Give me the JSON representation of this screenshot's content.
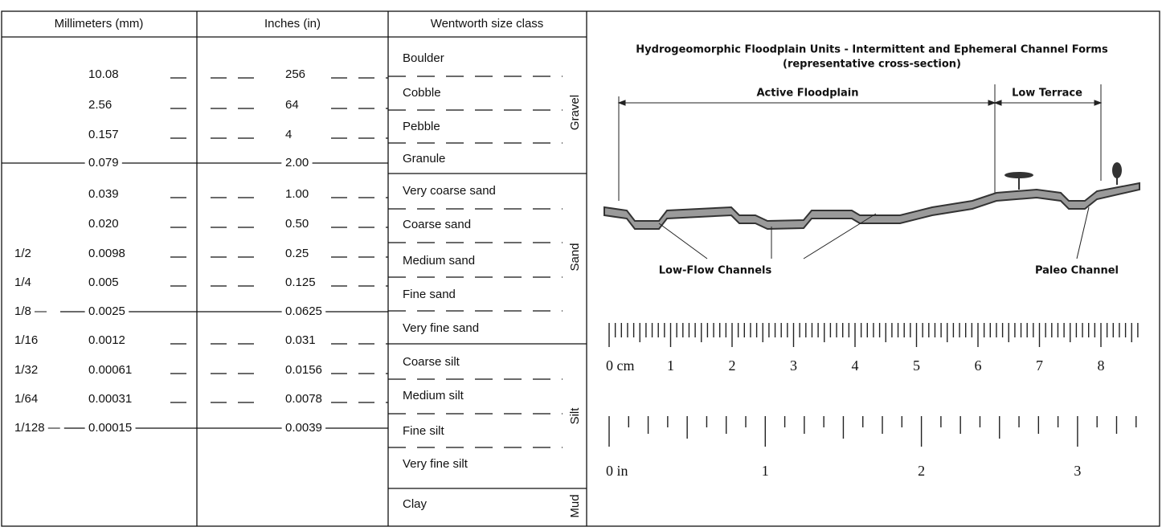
{
  "table": {
    "headers": [
      "Millimeters (mm)",
      "Inches (in)",
      "Wentworth size class"
    ],
    "rows": [
      [
        "",
        "10.08",
        "256"
      ],
      [
        "",
        "2.56",
        "64"
      ],
      [
        "",
        "0.157",
        "4"
      ],
      [
        "",
        "0.079",
        "2.00"
      ],
      [
        "",
        "0.039",
        "1.00"
      ],
      [
        "",
        "0.020",
        "0.50"
      ],
      [
        "1/2",
        "0.0098",
        "0.25"
      ],
      [
        "1/4",
        "0.005",
        "0.125"
      ],
      [
        "1/8 —",
        "0.0025",
        "0.0625"
      ],
      [
        "1/16",
        "0.0012",
        "0.031"
      ],
      [
        "1/32",
        "0.00061",
        "0.0156"
      ],
      [
        "1/64",
        "0.00031",
        "0.0078"
      ],
      [
        "1/128 —",
        "0.00015",
        "0.0039"
      ]
    ],
    "classes": [
      "Boulder",
      "Cobble",
      "Pebble",
      "Granule",
      "Very coarse sand",
      "Coarse sand",
      "Medium sand",
      "Fine sand",
      "Very fine sand",
      "Coarse silt",
      "Medium silt",
      "Fine silt",
      "Very fine silt",
      "Clay"
    ],
    "groups": [
      "Gravel",
      "Sand",
      "Silt",
      "Mud"
    ]
  },
  "diagram": {
    "title": "Hydrogeomorphic Floodplain Units - Intermittent and Ephemeral Channel Forms",
    "subtitle": "(representative cross-section)",
    "spans": [
      "Active Floodplain",
      "Low Terrace"
    ],
    "labels": [
      "Low-Flow Channels",
      "Paleo Channel"
    ]
  },
  "rulers": {
    "cm": [
      "0 cm",
      "1",
      "2",
      "3",
      "4",
      "5",
      "6",
      "7",
      "8"
    ],
    "in": [
      "0 in",
      "1",
      "2",
      "3"
    ]
  }
}
